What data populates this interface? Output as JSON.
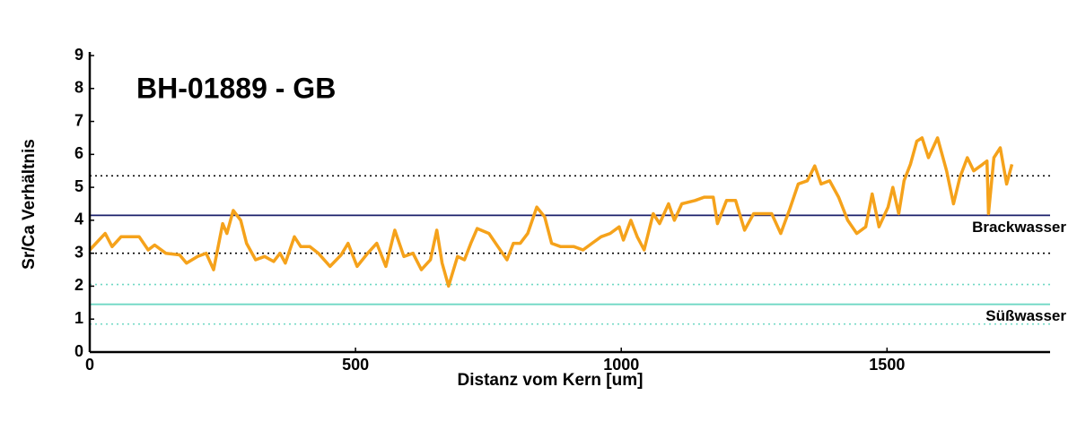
{
  "chart_data": {
    "type": "line",
    "title": "BH-01889 - GB",
    "x_label": "Distanz vom Kern [um]",
    "y_label": "Sr/Ca Verhältnis",
    "xlim": [
      0,
      1800
    ],
    "xticks": [
      0,
      500,
      1000,
      1500
    ],
    "ylim": [
      0,
      9
    ],
    "yticks": [
      0,
      1,
      2,
      3,
      4,
      5,
      6,
      7,
      8,
      9
    ],
    "x": [
      0,
      29,
      42,
      59,
      93,
      110,
      122,
      143,
      169,
      182,
      203,
      219,
      233,
      250,
      258,
      270,
      284,
      295,
      312,
      329,
      346,
      358,
      368,
      385,
      397,
      414,
      430,
      452,
      473,
      486,
      503,
      523,
      540,
      557,
      574,
      591,
      608,
      624,
      641,
      653,
      663,
      675,
      692,
      705,
      717,
      729,
      751,
      768,
      785,
      797,
      810,
      824,
      841,
      856,
      869,
      886,
      911,
      928,
      945,
      962,
      979,
      996,
      1004,
      1018,
      1030,
      1043,
      1060,
      1072,
      1089,
      1100,
      1114,
      1139,
      1156,
      1173,
      1181,
      1198,
      1215,
      1232,
      1249,
      1266,
      1283,
      1300,
      1316,
      1333,
      1350,
      1364,
      1376,
      1392,
      1409,
      1426,
      1443,
      1460,
      1472,
      1485,
      1502,
      1511,
      1522,
      1532,
      1544,
      1556,
      1566,
      1578,
      1595,
      1612,
      1625,
      1637,
      1651,
      1663,
      1680,
      1688,
      1691,
      1701,
      1713,
      1725,
      1735
    ],
    "series": [
      {
        "color": "#f5a21b",
        "values": [
          3.1,
          3.6,
          3.2,
          3.5,
          3.5,
          3.1,
          3.25,
          3.0,
          2.95,
          2.7,
          2.9,
          3.0,
          2.5,
          3.9,
          3.6,
          4.3,
          4.0,
          3.3,
          2.8,
          2.9,
          2.75,
          3.0,
          2.7,
          3.5,
          3.2,
          3.2,
          3.0,
          2.6,
          2.95,
          3.3,
          2.6,
          3.0,
          3.3,
          2.6,
          3.7,
          2.9,
          3.0,
          2.5,
          2.8,
          3.7,
          2.7,
          2.0,
          2.9,
          2.8,
          3.3,
          3.75,
          3.6,
          3.2,
          2.8,
          3.3,
          3.3,
          3.6,
          4.4,
          4.1,
          3.3,
          3.2,
          3.2,
          3.1,
          3.3,
          3.5,
          3.6,
          3.8,
          3.4,
          4.0,
          3.5,
          3.1,
          4.2,
          3.9,
          4.5,
          4.0,
          4.5,
          4.6,
          4.7,
          4.7,
          3.9,
          4.6,
          4.6,
          3.7,
          4.2,
          4.2,
          4.2,
          3.6,
          4.3,
          5.1,
          5.2,
          5.65,
          5.1,
          5.2,
          4.7,
          4.0,
          3.6,
          3.8,
          4.8,
          3.8,
          4.4,
          5.0,
          4.2,
          5.2,
          5.7,
          6.4,
          6.5,
          5.9,
          6.5,
          5.5,
          4.5,
          5.3,
          5.9,
          5.5,
          5.7,
          5.8,
          4.2,
          5.9,
          6.2,
          5.1,
          5.7
        ]
      }
    ],
    "reference_lines": [
      {
        "value": 5.35,
        "color": "#000000",
        "style": "dotted"
      },
      {
        "value": 4.15,
        "color": "#1a1f6b",
        "style": "solid",
        "label": "Brackwasser"
      },
      {
        "value": 3.0,
        "color": "#000000",
        "style": "dotted"
      },
      {
        "value": 2.05,
        "color": "#6fd8c4",
        "style": "dotted"
      },
      {
        "value": 1.45,
        "color": "#6fd8c4",
        "style": "solid",
        "label": "Süßwasser"
      },
      {
        "value": 0.85,
        "color": "#6fd8c4",
        "style": "dotted"
      }
    ]
  }
}
